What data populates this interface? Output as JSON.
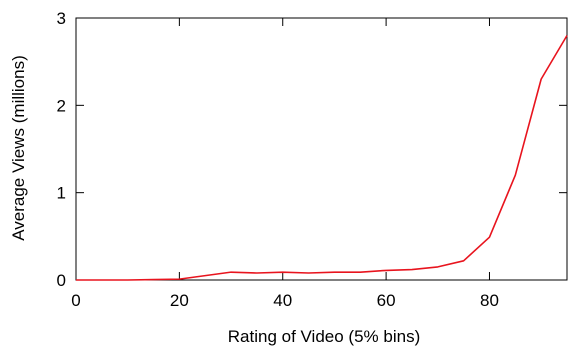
{
  "chart_data": {
    "type": "line",
    "xlabel": "Rating of Video (5% bins)",
    "ylabel": "Average Views (millions)",
    "xlim": [
      0,
      95
    ],
    "ylim": [
      0,
      3
    ],
    "xticks": [
      0,
      20,
      40,
      60,
      80
    ],
    "yticks": [
      0,
      1,
      2,
      3
    ],
    "grid": false,
    "legend": "none",
    "series": [
      {
        "color": "#e8141e",
        "x": [
          0,
          5,
          10,
          15,
          20,
          25,
          30,
          35,
          40,
          45,
          50,
          55,
          60,
          65,
          70,
          75,
          80,
          85,
          90,
          95
        ],
        "y": [
          0.0,
          0.0,
          0.0,
          0.005,
          0.01,
          0.05,
          0.09,
          0.08,
          0.09,
          0.08,
          0.09,
          0.09,
          0.11,
          0.12,
          0.15,
          0.22,
          0.49,
          1.2,
          2.3,
          2.8
        ]
      }
    ]
  }
}
